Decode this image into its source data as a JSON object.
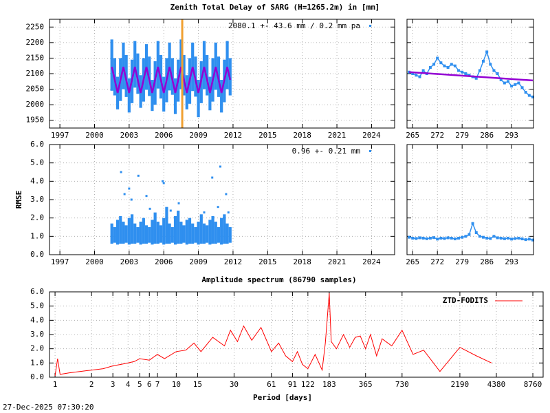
{
  "chart_data": [
    {
      "type": "range",
      "title": "Zenith Total Delay of SARG (H=1265.2m) in [mm]",
      "annotation": "2080.1 +-  43.6 mm /  0.2 mm pa",
      "x": [
        2001.5,
        2001.75,
        2002,
        2002.25,
        2002.5,
        2002.75,
        2003,
        2003.25,
        2003.5,
        2003.75,
        2004,
        2004.25,
        2004.5,
        2004.75,
        2005,
        2005.25,
        2005.5,
        2005.75,
        2006,
        2006.25,
        2006.5,
        2006.75,
        2007,
        2007.25,
        2007.5,
        2007.75,
        2008,
        2008.25,
        2008.5,
        2008.75,
        2009,
        2009.25,
        2009.5,
        2009.75,
        2010,
        2010.25,
        2010.5,
        2010.75,
        2011,
        2011.25,
        2011.5,
        2011.75
      ],
      "low": [
        2045,
        2030,
        1985,
        2012,
        2050,
        2025,
        1975,
        2005,
        2055,
        2035,
        1990,
        2010,
        2048,
        2028,
        1980,
        2000,
        2052,
        2020,
        1978,
        2008,
        2046,
        2032,
        1970,
        2010,
        2050,
        2030,
        1985,
        2003,
        2044,
        2026,
        1960,
        2005,
        2050,
        2030,
        1982,
        2010,
        2048,
        2025,
        1975,
        2008,
        2050,
        2030
      ],
      "high": [
        2210,
        2150,
        2090,
        2150,
        2200,
        2160,
        2085,
        2145,
        2205,
        2165,
        2095,
        2150,
        2195,
        2155,
        2080,
        2140,
        2205,
        2160,
        2090,
        2150,
        2200,
        2150,
        2085,
        2145,
        2210,
        2160,
        2095,
        2150,
        2200,
        2155,
        2080,
        2140,
        2205,
        2160,
        2090,
        2150,
        2200,
        2155,
        2080,
        2145,
        2205,
        2150
      ],
      "color": "#2f8fef",
      "model": {
        "color": "#9400d3",
        "values": [
          2122,
          2080,
          2038,
          2080,
          2122,
          2080,
          2038,
          2080,
          2122,
          2080,
          2038,
          2080,
          2122,
          2080,
          2038,
          2080,
          2122,
          2080,
          2038,
          2080,
          2122,
          2080,
          2038,
          2080,
          2122,
          2080,
          2038,
          2080,
          2122,
          2080,
          2038,
          2080,
          2122,
          2080,
          2038,
          2080,
          2122,
          2080,
          2038,
          2080,
          2122,
          2080
        ]
      },
      "marker_x": 2007.6,
      "marker_color": "#f0a030",
      "xlim": [
        1996.1,
        2026
      ],
      "xticks": [
        1997,
        2000,
        2003,
        2006,
        2009,
        2012,
        2015,
        2018,
        2021,
        2024
      ],
      "ylim": [
        1925,
        2275
      ],
      "yticks": [
        1950,
        2000,
        2050,
        2100,
        2150,
        2200,
        2250
      ],
      "grid": true
    },
    {
      "type": "line",
      "x": [
        264,
        265,
        266,
        267,
        268,
        269,
        270,
        271,
        272,
        273,
        274,
        275,
        276,
        277,
        278,
        279,
        280,
        281,
        282,
        283,
        284,
        285,
        286,
        287,
        288,
        289,
        290,
        291,
        292,
        293,
        294,
        295,
        296,
        297,
        298,
        299
      ],
      "values": [
        2105,
        2100,
        2095,
        2090,
        2110,
        2100,
        2120,
        2130,
        2150,
        2135,
        2125,
        2120,
        2130,
        2125,
        2110,
        2105,
        2100,
        2095,
        2090,
        2085,
        2110,
        2140,
        2170,
        2130,
        2110,
        2100,
        2080,
        2070,
        2075,
        2060,
        2065,
        2070,
        2055,
        2040,
        2030,
        2025
      ],
      "color": "#2f8fef",
      "trend": {
        "x": [
          264,
          299
        ],
        "values": [
          2105,
          2078
        ],
        "color": "#9400d3"
      },
      "xlim": [
        263.4,
        299.2
      ],
      "xticks": [
        265,
        272,
        279,
        286,
        293
      ],
      "ylim": [
        1925,
        2275
      ],
      "yticks": [
        1950,
        2000,
        2050,
        2100,
        2150,
        2200,
        2250
      ],
      "show_ytick_labels": false,
      "grid": true
    },
    {
      "type": "range",
      "ylabel": "RMSE",
      "annotation": "0.96 +-  0.21 mm",
      "x": [
        2001.5,
        2001.75,
        2002,
        2002.25,
        2002.5,
        2002.75,
        2003,
        2003.25,
        2003.5,
        2003.75,
        2004,
        2004.25,
        2004.5,
        2004.75,
        2005,
        2005.25,
        2005.5,
        2005.75,
        2006,
        2006.25,
        2006.5,
        2006.75,
        2007,
        2007.25,
        2007.5,
        2007.75,
        2008,
        2008.25,
        2008.5,
        2008.75,
        2009,
        2009.25,
        2009.5,
        2009.75,
        2010,
        2010.25,
        2010.5,
        2010.75,
        2011,
        2011.25,
        2011.5,
        2011.75
      ],
      "low": [
        0.6,
        0.65,
        0.55,
        0.6,
        0.6,
        0.65,
        0.55,
        0.6,
        0.6,
        0.65,
        0.55,
        0.6,
        0.6,
        0.65,
        0.55,
        0.6,
        0.6,
        0.65,
        0.55,
        0.6,
        0.6,
        0.65,
        0.55,
        0.6,
        0.6,
        0.65,
        0.55,
        0.6,
        0.6,
        0.65,
        0.55,
        0.6,
        0.6,
        0.65,
        0.55,
        0.6,
        0.6,
        0.65,
        0.55,
        0.6,
        0.6,
        0.65
      ],
      "high": [
        1.7,
        1.5,
        1.9,
        2.1,
        1.8,
        1.6,
        2.0,
        2.2,
        1.7,
        1.5,
        1.8,
        2.0,
        1.6,
        1.5,
        1.9,
        2.3,
        1.8,
        1.6,
        2.0,
        2.6,
        1.7,
        1.5,
        2.1,
        2.4,
        1.8,
        1.6,
        1.9,
        2.0,
        1.7,
        1.5,
        1.8,
        2.2,
        1.7,
        1.6,
        1.9,
        2.1,
        1.8,
        1.5,
        2.0,
        2.2,
        1.7,
        1.5
      ],
      "color": "#2f8fef",
      "outliers": {
        "x": [
          2002.3,
          2002.6,
          2003.0,
          2003.2,
          2003.8,
          2004.5,
          2004.8,
          2005.9,
          2006.0,
          2006.6,
          2007.3,
          2009.5,
          2010.2,
          2010.7,
          2010.9,
          2011.2,
          2011.4,
          2011.6
        ],
        "values": [
          4.5,
          3.3,
          3.6,
          3.0,
          4.3,
          3.2,
          2.5,
          4.0,
          3.9,
          2.4,
          2.8,
          2.3,
          4.2,
          2.6,
          4.8,
          2.0,
          3.3,
          2.3
        ]
      },
      "xlim": [
        1996.1,
        2026
      ],
      "xticks": [
        1997,
        2000,
        2003,
        2006,
        2009,
        2012,
        2015,
        2018,
        2021,
        2024
      ],
      "ylim": [
        0,
        6
      ],
      "yticks": [
        {
          "value": 0,
          "label": "0.0"
        },
        {
          "value": 1,
          "label": "1.0"
        },
        {
          "value": 2,
          "label": "2.0"
        },
        {
          "value": 3,
          "label": "3.0"
        },
        {
          "value": 4,
          "label": "4.0"
        },
        {
          "value": 5,
          "label": "5.0"
        },
        {
          "value": 6,
          "label": "6.0"
        }
      ],
      "grid": true
    },
    {
      "type": "line",
      "x": [
        264,
        265,
        266,
        267,
        268,
        269,
        270,
        271,
        272,
        273,
        274,
        275,
        276,
        277,
        278,
        279,
        280,
        281,
        282,
        283,
        284,
        285,
        286,
        287,
        288,
        289,
        290,
        291,
        292,
        293,
        294,
        295,
        296,
        297,
        298,
        299
      ],
      "values": [
        0.95,
        0.9,
        0.88,
        0.92,
        0.9,
        0.87,
        0.9,
        0.93,
        0.85,
        0.9,
        0.88,
        0.92,
        0.9,
        0.86,
        0.9,
        0.95,
        1.0,
        1.1,
        1.7,
        1.2,
        1.0,
        0.95,
        0.9,
        0.88,
        1.0,
        0.92,
        0.9,
        0.87,
        0.9,
        0.85,
        0.88,
        0.9,
        0.86,
        0.82,
        0.85,
        0.8
      ],
      "color": "#2f8fef",
      "xlim": [
        263.4,
        299.2
      ],
      "xticks": [
        265,
        272,
        279,
        286,
        293
      ],
      "ylim": [
        0,
        6
      ],
      "yticks": [
        {
          "value": 0,
          "label": "0.0"
        },
        {
          "value": 1,
          "label": "1.0"
        },
        {
          "value": 2,
          "label": "2.0"
        },
        {
          "value": 3,
          "label": "3.0"
        },
        {
          "value": 4,
          "label": "4.0"
        },
        {
          "value": 5,
          "label": "5.0"
        },
        {
          "value": 6,
          "label": "6.0"
        }
      ],
      "show_ytick_labels": false,
      "grid": true
    },
    {
      "type": "line",
      "title": "Amplitude spectrum (86790 samples)",
      "xlabel": "Period [days]",
      "log_x": true,
      "legend": "top-right",
      "series": [
        {
          "name": "ZTD-FODITS",
          "color": "#ff0000",
          "x": [
            1,
            1.05,
            1.1,
            1.3,
            1.6,
            2,
            2.5,
            3,
            3.5,
            4,
            4.5,
            5,
            6,
            7,
            8,
            10,
            12,
            14,
            16,
            20,
            25,
            28,
            32,
            36,
            42,
            50,
            61,
            70,
            80,
            91,
            100,
            110,
            122,
            140,
            160,
            170,
            183,
            190,
            210,
            240,
            270,
            300,
            330,
            365,
            400,
            450,
            500,
            600,
            730,
            900,
            1100,
            1500,
            2190,
            3000,
            4000
          ],
          "values": [
            0.1,
            1.3,
            0.2,
            0.3,
            0.4,
            0.5,
            0.6,
            0.8,
            0.9,
            1.0,
            1.1,
            1.3,
            1.2,
            1.6,
            1.3,
            1.8,
            1.9,
            2.4,
            1.8,
            2.8,
            2.2,
            3.3,
            2.5,
            3.6,
            2.6,
            3.5,
            1.8,
            2.4,
            1.5,
            1.1,
            1.8,
            0.9,
            0.6,
            1.6,
            0.5,
            2.4,
            5.9,
            2.5,
            2.0,
            3.0,
            2.1,
            2.8,
            2.9,
            2.0,
            3.0,
            1.5,
            2.7,
            2.2,
            3.3,
            1.6,
            1.9,
            0.4,
            2.1,
            1.5,
            1.0
          ]
        }
      ],
      "xlim": [
        0.9,
        10650
      ],
      "xticks": [
        1,
        2,
        3,
        4,
        5,
        6,
        7,
        10,
        15,
        30,
        61,
        91,
        122,
        183,
        365,
        730,
        2190,
        4380,
        8760
      ],
      "ylim": [
        0,
        6
      ],
      "yticks": [
        {
          "value": 0,
          "label": "0.0"
        },
        {
          "value": 1,
          "label": "1.0"
        },
        {
          "value": 2,
          "label": "2.0"
        },
        {
          "value": 3,
          "label": "3.0"
        },
        {
          "value": 4,
          "label": "4.0"
        },
        {
          "value": 5,
          "label": "5.0"
        },
        {
          "value": 6,
          "label": "6.0"
        }
      ],
      "grid": true
    }
  ],
  "timestamp": "27-Dec-2025 07:30:20"
}
